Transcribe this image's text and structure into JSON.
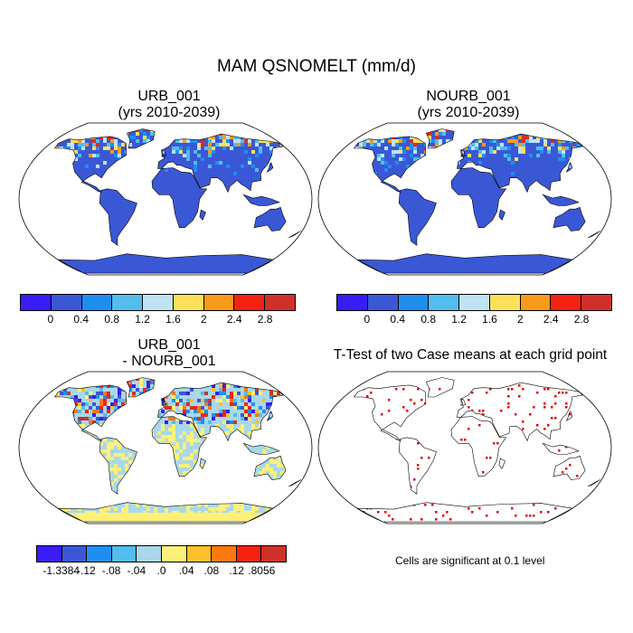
{
  "title": "MAM QSNOMELT (mm/d)",
  "panels": [
    {
      "id": "urb",
      "title_line1": "URB_001",
      "title_line2": "(yrs 2010-2039)"
    },
    {
      "id": "nourb",
      "title_line1": "NOURB_001",
      "title_line2": "(yrs 2010-2039)"
    },
    {
      "id": "diff",
      "title_line1": "URB_001",
      "title_line2": "- NOURB_001"
    },
    {
      "id": "ttest",
      "title_line1": "T-Test of two Case means at each grid point"
    }
  ],
  "colorbar_abs": {
    "colors": [
      "#3a1cf6",
      "#3a58d6",
      "#1f8fef",
      "#52bdee",
      "#bfe3f0",
      "#fde05a",
      "#fb9a1a",
      "#f5220f",
      "#d0302a"
    ],
    "labels": [
      "0",
      "0.4",
      "0.8",
      "1.2",
      "1.6",
      "2",
      "2.4",
      "2.8"
    ]
  },
  "colorbar_diff": {
    "colors": [
      "#3a1cf6",
      "#3a58d6",
      "#1f8fef",
      "#52bdee",
      "#a8d8ea",
      "#fdf07a",
      "#fdc02a",
      "#fb7a10",
      "#f5220f",
      "#d0302a"
    ],
    "labels": [
      "-1.3384",
      "-.12",
      "-.08",
      "-.04",
      ".0",
      ".04",
      ".08",
      ".12",
      ".8056"
    ]
  },
  "significance_note": "Cells are significant at 0.1 level",
  "colors": {
    "ocean": "#ffffff",
    "land_base": "#3a58d6",
    "diff_land": "#a8d8ea",
    "diff_yellow": "#fdf07a",
    "significant": "#e00000"
  }
}
